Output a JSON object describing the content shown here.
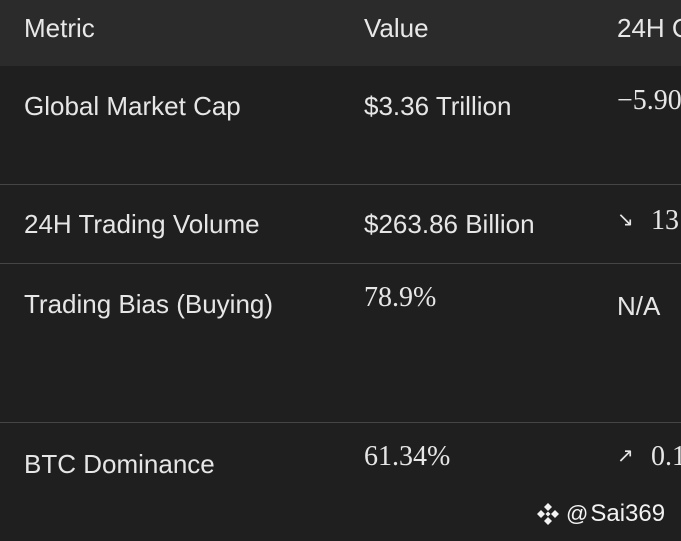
{
  "table": {
    "headers": {
      "metric": "Metric",
      "value": "Value",
      "change": "24H C"
    },
    "rows": [
      {
        "metric": "Global Market Cap",
        "value": "$3.36 Trillion",
        "change_arrow": "",
        "change": "−5.90"
      },
      {
        "metric": "24H Trading Volume",
        "value": "$263.86 Billion",
        "change_arrow": "↘",
        "change": "13"
      },
      {
        "metric": "Trading Bias (Buying)",
        "value": "78.9%",
        "change_arrow": "",
        "change": "N/A"
      },
      {
        "metric": "BTC Dominance",
        "value": "61.34%",
        "change_arrow": "↗",
        "change": "0.1"
      }
    ]
  },
  "watermark": {
    "at": "@",
    "handle": "Sai369"
  },
  "colors": {
    "background": "#1f1f1f",
    "header_background": "#2b2b2b",
    "divider": "#454545",
    "text": "#e6e6e6"
  }
}
